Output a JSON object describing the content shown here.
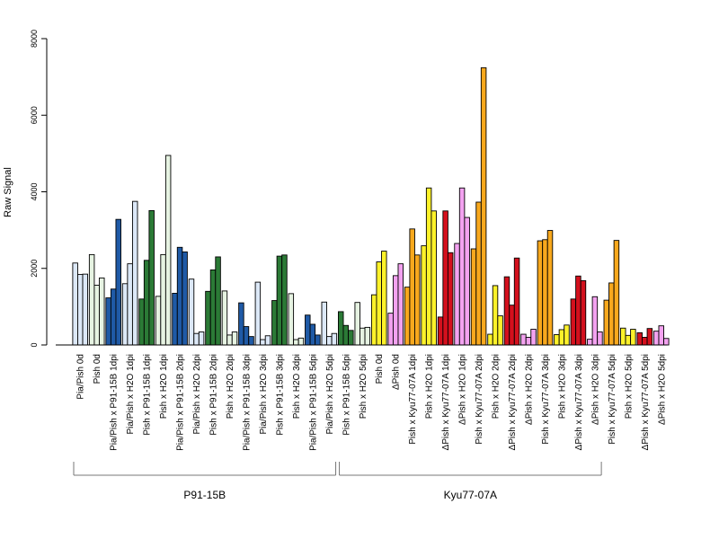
{
  "chart_data": {
    "type": "bar",
    "ylabel": "Raw Signal",
    "ylim": [
      0,
      8000
    ],
    "yticks": [
      0,
      2000,
      4000,
      6000,
      8000
    ],
    "grid": false,
    "colors": {
      "light_blue": "#dce8f7",
      "dark_blue": "#1f5aa6",
      "light_green": "#e6f3e2",
      "dark_green": "#2b7a36",
      "yellow": "#fdf22a",
      "pink": "#f3a2f0",
      "red": "#d4101d",
      "orange": "#f8a81d"
    },
    "groups": [
      {
        "label": "P91-15B",
        "first": 0,
        "last": 15
      },
      {
        "label": "Kyu77-07A",
        "first": 16,
        "last": 31
      }
    ],
    "categories": [
      {
        "label": "Pia/Pish 0d",
        "color": "light_blue",
        "values": [
          2140,
          1840,
          1850
        ]
      },
      {
        "label": "Pish 0d",
        "color": "light_green",
        "values": [
          2360,
          1560,
          1750
        ]
      },
      {
        "label": "Pia/Pish x P91-15B 1dpi",
        "color": "dark_blue",
        "values": [
          1230,
          1460,
          3280
        ]
      },
      {
        "label": "Pia/Pish x H2O 1dpi",
        "color": "light_blue",
        "values": [
          1600,
          2120,
          3750
        ]
      },
      {
        "label": "Pish x P91-15B 1dpi",
        "color": "dark_green",
        "values": [
          1200,
          2210,
          3510
        ]
      },
      {
        "label": "Pish x H2O 1dpi",
        "color": "light_green",
        "values": [
          1270,
          2360,
          4950
        ]
      },
      {
        "label": "Pia/Pish x P91-15B 2dpi",
        "color": "dark_blue",
        "values": [
          1350,
          2550,
          2430
        ]
      },
      {
        "label": "Pia/Pish x H2O 2dpi",
        "color": "light_blue",
        "values": [
          1720,
          300,
          340
        ]
      },
      {
        "label": "Pish x P91-15B 2dpi",
        "color": "dark_green",
        "values": [
          1400,
          1960,
          2300
        ]
      },
      {
        "label": "Pish x H2O 2dpi",
        "color": "light_green",
        "values": [
          1410,
          260,
          340
        ]
      },
      {
        "label": "Pia/Pish x P91-15B 3dpi",
        "color": "dark_blue",
        "values": [
          1100,
          480,
          220
        ]
      },
      {
        "label": "Pia/Pish x H2O 3dpi",
        "color": "light_blue",
        "values": [
          1640,
          140,
          240
        ]
      },
      {
        "label": "Pish x P91-15B 3dpi",
        "color": "dark_green",
        "values": [
          1160,
          2320,
          2350
        ]
      },
      {
        "label": "Pish x H2O 3dpi",
        "color": "light_green",
        "values": [
          1340,
          140,
          180
        ]
      },
      {
        "label": "Pia/Pish x P91-15B 5dpi",
        "color": "dark_blue",
        "values": [
          780,
          540,
          260
        ]
      },
      {
        "label": "Pia/Pish x H2O 5dpi",
        "color": "light_blue",
        "values": [
          1120,
          220,
          300
        ]
      },
      {
        "label": "Pish x P91-15B 5dpi",
        "color": "dark_green",
        "values": [
          870,
          510,
          380
        ]
      },
      {
        "label": "Pish x H2O 5dpi",
        "color": "light_green",
        "values": [
          1110,
          440,
          460
        ]
      },
      {
        "label": "Pish 0d",
        "color": "yellow",
        "values": [
          1310,
          2170,
          2450
        ]
      },
      {
        "label": "ΔPish 0d",
        "color": "pink",
        "values": [
          830,
          1810,
          2120
        ]
      },
      {
        "label": "Pish x Kyu77-07A 1dpi",
        "color": "orange",
        "values": [
          1510,
          3030,
          2350
        ]
      },
      {
        "label": "Pish x H2O 1dpi",
        "color": "yellow",
        "values": [
          2590,
          4100,
          3500
        ]
      },
      {
        "label": "ΔPish x Kyu77-07A 1dpi",
        "color": "red",
        "values": [
          730,
          3500,
          2410
        ]
      },
      {
        "label": "ΔPish x H2O 1dpi",
        "color": "pink",
        "values": [
          2650,
          4100,
          3330
        ]
      },
      {
        "label": "Pish x Kyu77-07A 2dpi",
        "color": "orange",
        "values": [
          2510,
          3730,
          7240
        ]
      },
      {
        "label": "Pish x H2O 2dpi",
        "color": "yellow",
        "values": [
          280,
          1550,
          760
        ]
      },
      {
        "label": "ΔPish x Kyu77-07A 2dpi",
        "color": "red",
        "values": [
          1780,
          1040,
          2270
        ]
      },
      {
        "label": "ΔPish x H2O 2dpi",
        "color": "pink",
        "values": [
          280,
          200,
          410
        ]
      },
      {
        "label": "Pish x Kyu77-07A 3dpi",
        "color": "orange",
        "values": [
          2720,
          2750,
          2990
        ]
      },
      {
        "label": "Pish x H2O 3dpi",
        "color": "yellow",
        "values": [
          270,
          400,
          520
        ]
      },
      {
        "label": "ΔPish x Kyu77-07A 3dpi",
        "color": "red",
        "values": [
          1200,
          1800,
          1680
        ]
      },
      {
        "label": "ΔPish x H2O 3dpi",
        "color": "pink",
        "values": [
          150,
          1260,
          340
        ]
      },
      {
        "label": "Pish x Kyu77-07A 5dpi",
        "color": "orange",
        "values": [
          1170,
          1620,
          2730
        ]
      },
      {
        "label": "Pish x H2O 5dpi",
        "color": "yellow",
        "values": [
          440,
          250,
          410
        ]
      },
      {
        "label": "ΔPish x Kyu77-07A 5dpi",
        "color": "red",
        "values": [
          320,
          200,
          430
        ]
      },
      {
        "label": "ΔPish x H2O 5dpi",
        "color": "pink",
        "values": [
          360,
          500,
          170
        ]
      }
    ]
  }
}
